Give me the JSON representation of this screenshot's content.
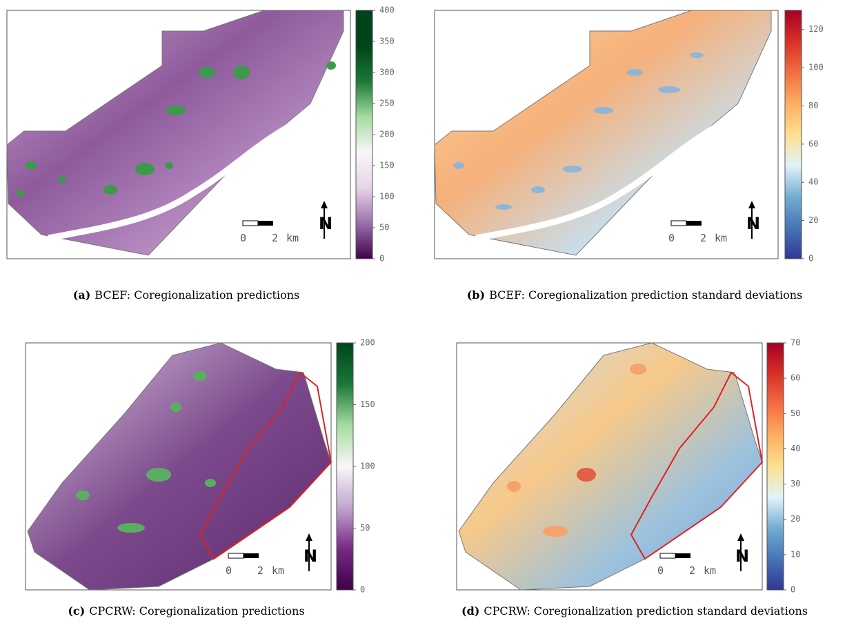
{
  "panels": [
    {
      "label": "(a)",
      "caption": "BCEF: Coregionalization predictions",
      "colorbar": {
        "lim": [
          0,
          400
        ],
        "ticks": [
          0,
          50,
          100,
          150,
          200,
          250,
          300,
          350,
          400
        ],
        "colors": [
          "#40004b",
          "#9970ab",
          "#e7d4e8",
          "#f7f7f7",
          "#a6dba0",
          "#1b7837",
          "#00441b",
          "#00441b"
        ]
      },
      "scale_bar": {
        "start": "0",
        "end": "2",
        "unit": "km"
      },
      "north": "N"
    },
    {
      "label": "(b)",
      "caption": "BCEF: Coregionalization prediction standard deviations",
      "colorbar": {
        "lim": [
          0,
          130
        ],
        "ticks": [
          0,
          20,
          40,
          60,
          80,
          100,
          120
        ],
        "colors": [
          "#313695",
          "#4575b4",
          "#74add1",
          "#e0f3f8",
          "#fee090",
          "#fdae61",
          "#f46d43",
          "#d73027",
          "#a50026"
        ]
      },
      "scale_bar": {
        "start": "0",
        "end": "2",
        "unit": "km"
      },
      "north": "N"
    },
    {
      "label": "(c)",
      "caption": "CPCRW: Coregionalization predictions",
      "colorbar": {
        "lim": [
          0,
          200
        ],
        "ticks": [
          0,
          50,
          100,
          150,
          200
        ],
        "colors": [
          "#40004b",
          "#762a83",
          "#c2a5cf",
          "#f7f7f7",
          "#a6dba0",
          "#1b7837",
          "#00441b"
        ]
      },
      "scale_bar": {
        "start": "0",
        "end": "2",
        "unit": "km"
      },
      "north": "N"
    },
    {
      "label": "(d)",
      "caption": "CPCRW: Coregionalization prediction standard deviations",
      "colorbar": {
        "lim": [
          0,
          70
        ],
        "ticks": [
          0,
          10,
          20,
          30,
          40,
          50,
          60,
          70
        ],
        "colors": [
          "#313695",
          "#4575b4",
          "#74add1",
          "#e0f3f8",
          "#fee090",
          "#fdae61",
          "#f46d43",
          "#d73027",
          "#a50026"
        ]
      },
      "scale_bar": {
        "start": "0",
        "end": "2",
        "unit": "km"
      },
      "north": "N"
    }
  ]
}
